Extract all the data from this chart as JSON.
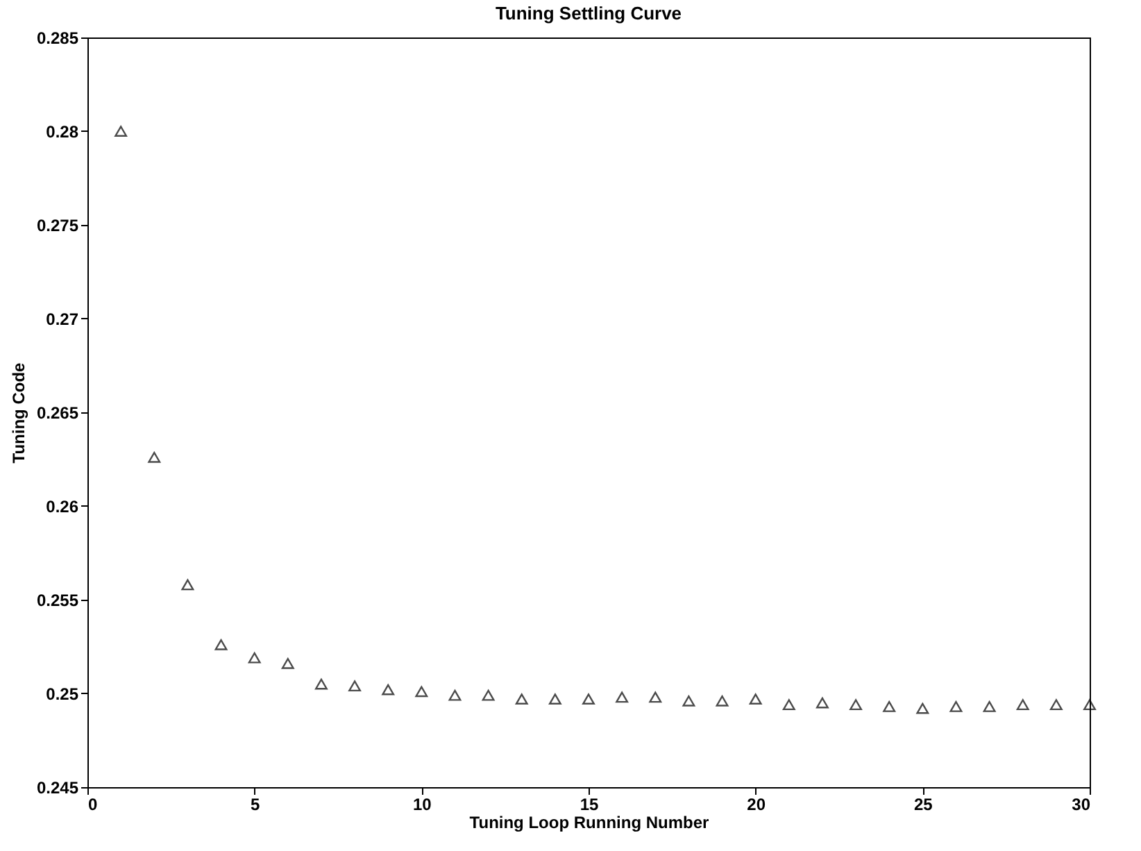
{
  "chart_data": {
    "type": "scatter",
    "title": "Tuning Settling Curve",
    "xlabel": "Tuning Loop Running Number",
    "ylabel": "Tuning Code",
    "x": [
      1,
      2,
      3,
      4,
      5,
      6,
      7,
      8,
      9,
      10,
      11,
      12,
      13,
      14,
      15,
      16,
      17,
      18,
      19,
      20,
      21,
      22,
      23,
      24,
      25,
      26,
      27,
      28,
      29,
      30
    ],
    "series": [
      {
        "color": "#000000",
        "values": [
          0.28,
          0.2626,
          0.2558,
          0.2526,
          0.2519,
          0.2516,
          0.2505,
          0.2504,
          0.2502,
          0.2501,
          0.2499,
          0.2499,
          0.2497,
          0.2497,
          0.2497,
          0.2498,
          0.2498,
          0.2496,
          0.2496,
          0.2497,
          0.2494,
          0.2495,
          0.2494,
          0.2493,
          0.2492,
          0.2493,
          0.2493,
          0.2494,
          0.2494,
          0.2494
        ]
      }
    ],
    "xlim": [
      0,
      30
    ],
    "xticks": [
      0,
      5,
      10,
      15,
      20,
      25,
      30
    ],
    "ylim": [
      0.245,
      0.285
    ],
    "yticks": [
      0.245,
      0.25,
      0.255,
      0.26,
      0.265,
      0.27,
      0.275,
      0.28,
      0.285
    ],
    "marker": "triangle",
    "grid": false,
    "legend": false
  }
}
